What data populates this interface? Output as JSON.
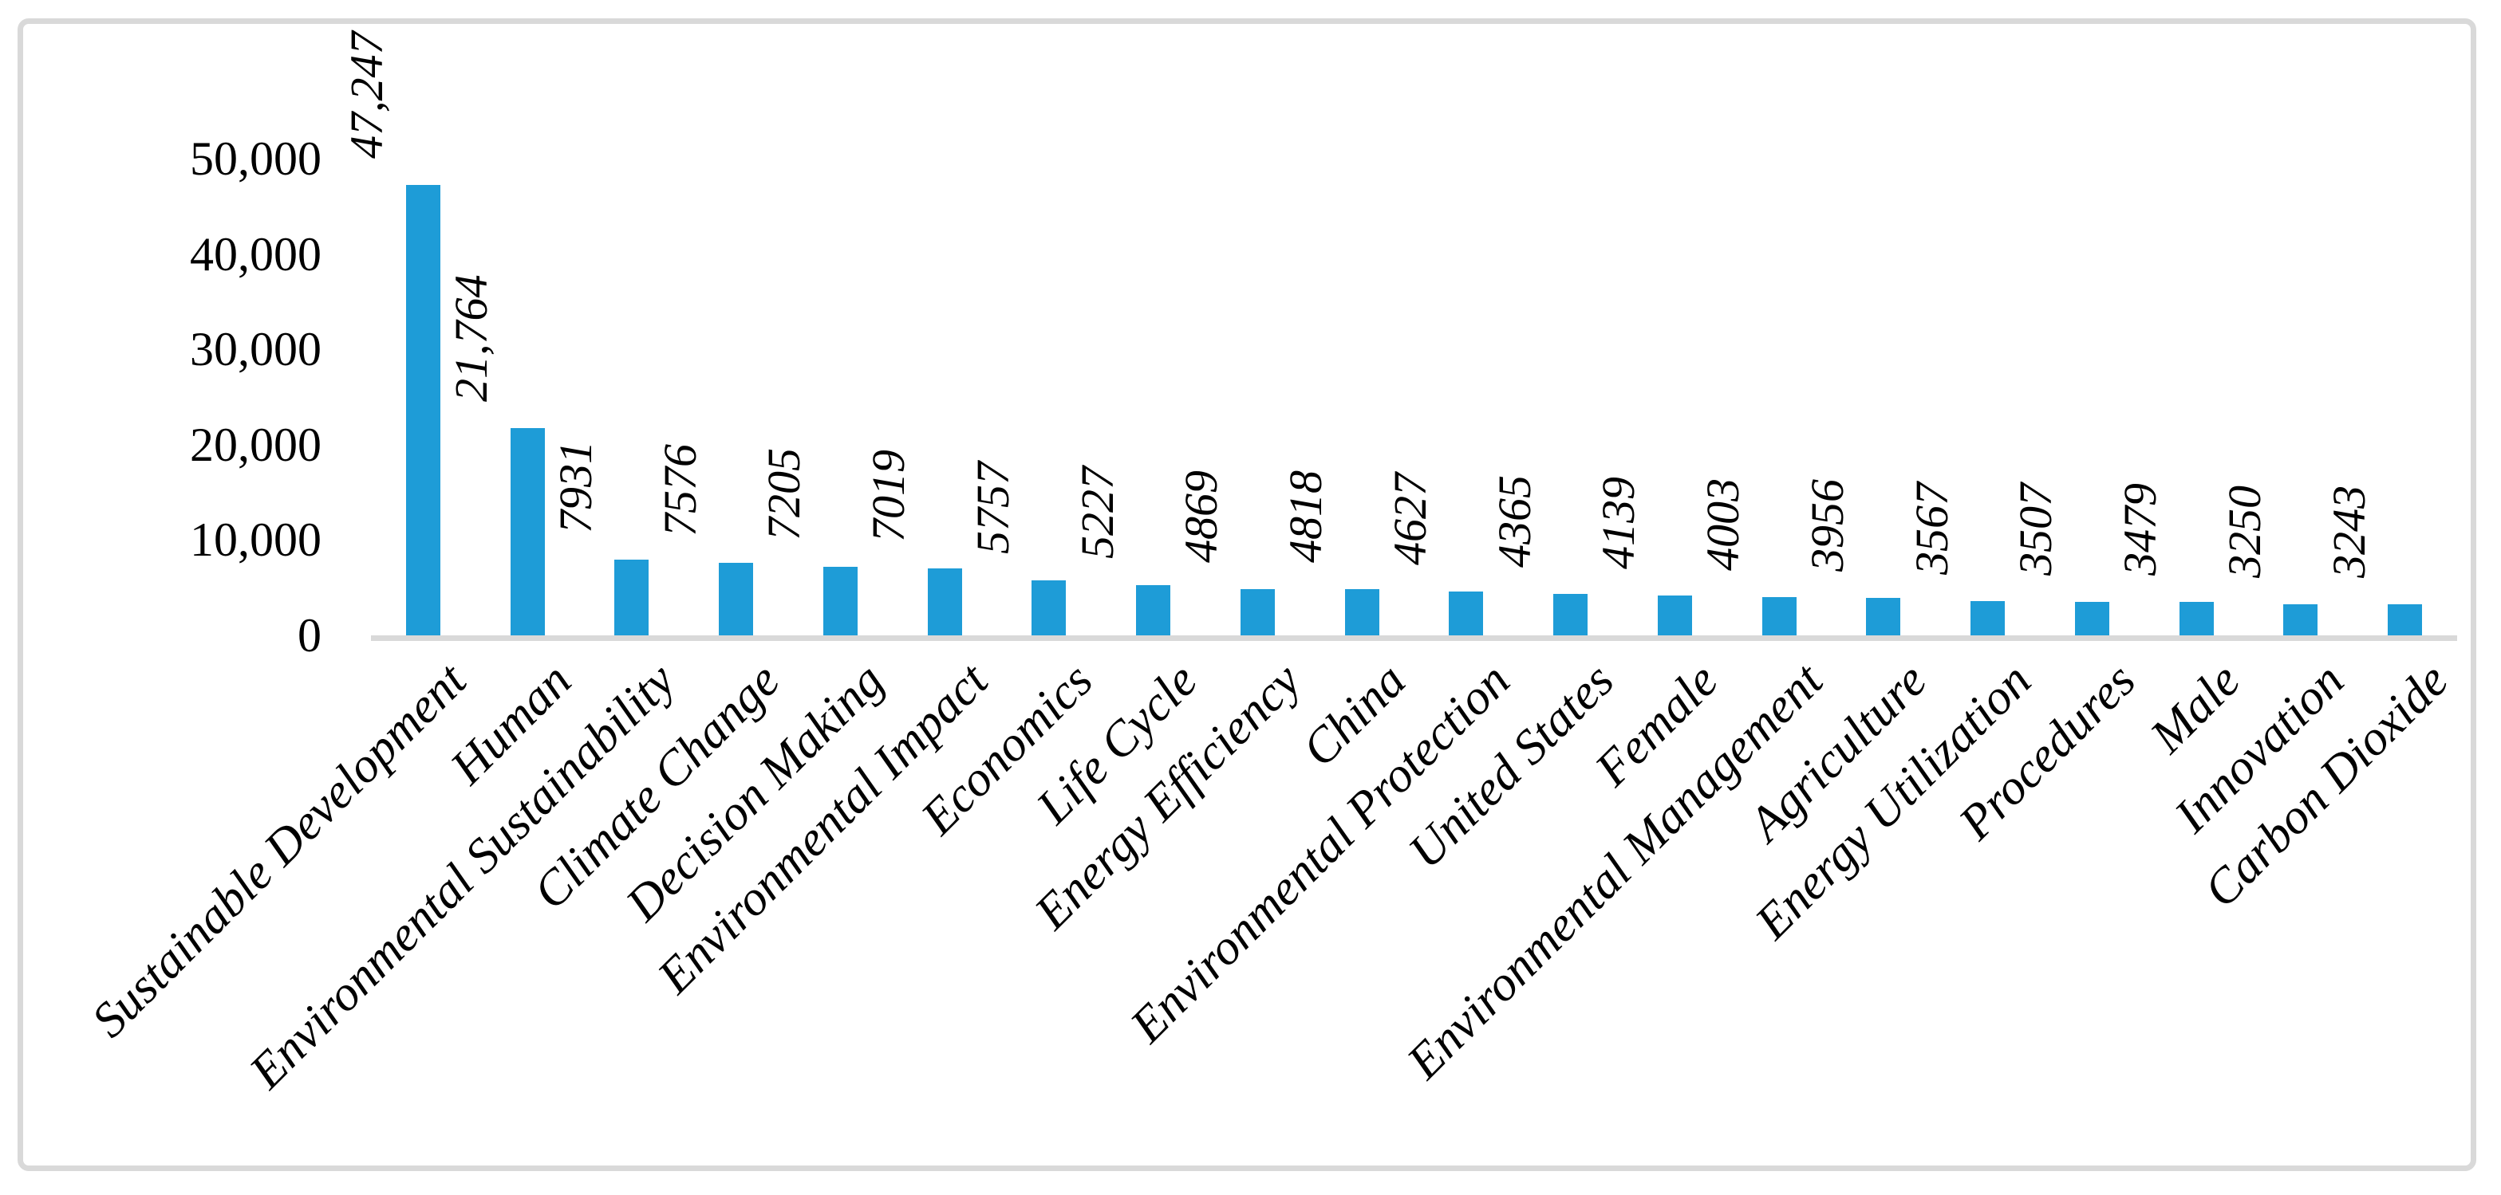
{
  "chart_data": {
    "type": "bar",
    "title": "",
    "xlabel": "",
    "ylabel": "",
    "categories": [
      "Sustainable Development",
      "Human",
      "Environmental Sustainability",
      "Climate Change",
      "Decision Making",
      "Environmental Impact",
      "Economics",
      "Life Cycle",
      "Energy Efficiency",
      "China",
      "Environmental Protection",
      "United States",
      "Female",
      "Environmental Management",
      "Agriculture",
      "Energy Utilization",
      "Procedures",
      "Male",
      "Innovation",
      "Carbon Dioxide"
    ],
    "values": [
      47247,
      21764,
      7931,
      7576,
      7205,
      7019,
      5757,
      5227,
      4869,
      4818,
      4627,
      4365,
      4139,
      4003,
      3956,
      3567,
      3507,
      3479,
      3250,
      3243
    ],
    "value_labels": [
      "47,247",
      "21,764",
      "7931",
      "7576",
      "7205",
      "7019",
      "5757",
      "5227",
      "4869",
      "4818",
      "4627",
      "4365",
      "4139",
      "4003",
      "3956",
      "3567",
      "3507",
      "3479",
      "3250",
      "3243"
    ],
    "y_ticks": [
      "0",
      "10,000",
      "20,000",
      "30,000",
      "40,000",
      "50,000"
    ],
    "ylim": [
      0,
      50000
    ],
    "grid": false,
    "legend": "none",
    "bar_color": "#1E9CD7",
    "axis_color": "#D9D9D9",
    "label_color": "#000000",
    "category_label_style": "italic, rotated 45deg",
    "value_label_style": "italic, rotated 90deg"
  }
}
